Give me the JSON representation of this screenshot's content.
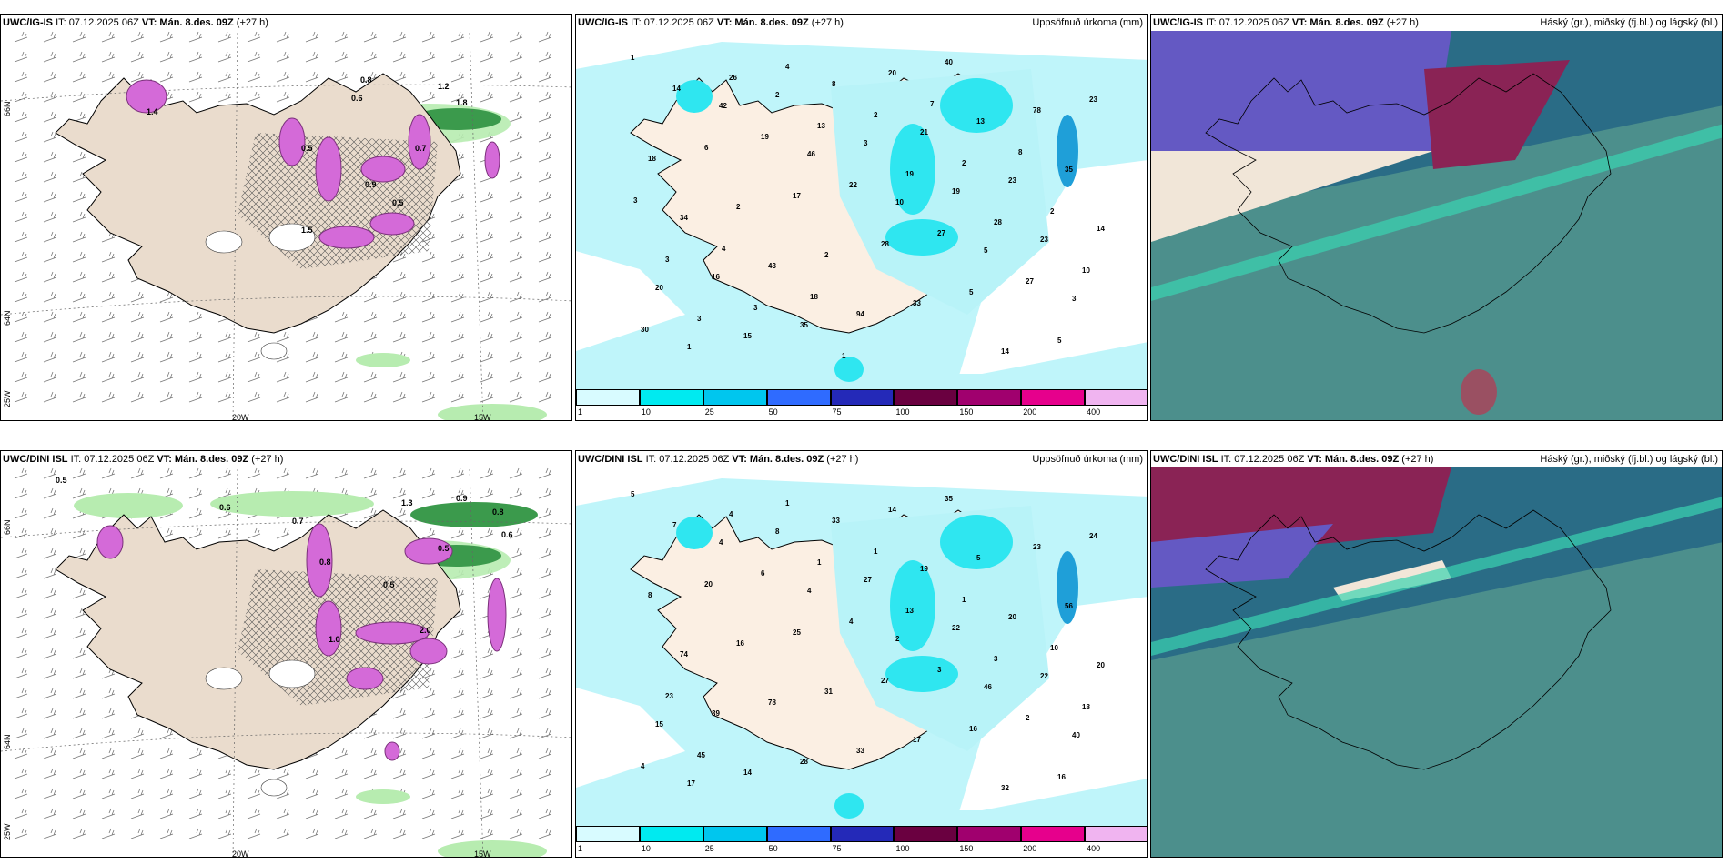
{
  "panels": {
    "top_left": {
      "model": "UWC/IG-IS",
      "it": "IT: 07.12.2025 06Z",
      "vt_label": "VT:",
      "vt": "Mán. 8.des. 09Z",
      "lead": "(+27 h)",
      "right": ""
    },
    "top_mid": {
      "model": "UWC/IG-IS",
      "it": "IT: 07.12.2025 06Z",
      "vt_label": "VT:",
      "vt": "Mán. 8.des. 09Z",
      "lead": "(+27 h)",
      "right": "Uppsöfnuð úrkoma (mm)"
    },
    "top_right": {
      "model": "UWC/IG-IS",
      "it": "IT: 07.12.2025 06Z",
      "vt_label": "VT:",
      "vt": "Mán. 8.des. 09Z",
      "lead": "(+27 h)",
      "right": "Háský (gr.), miðský (fj.bl.) og lágský (bl.)"
    },
    "bot_left": {
      "model": "UWC/DINI ISL",
      "it": "IT: 07.12.2025 06Z",
      "vt_label": "VT:",
      "vt": "Mán. 8.des. 09Z",
      "lead": "(+27 h)",
      "right": ""
    },
    "bot_mid": {
      "model": "UWC/DINI ISL",
      "it": "IT: 07.12.2025 06Z",
      "vt_label": "VT:",
      "vt": "Mán. 8.des. 09Z",
      "lead": "(+27 h)",
      "right": "Uppsöfnuð úrkoma (mm)"
    },
    "bot_right": {
      "model": "UWC/DINI ISL",
      "it": "IT: 07.12.2025 06Z",
      "vt_label": "VT:",
      "vt": "Mán. 8.des. 09Z",
      "lead": "(+27 h)",
      "right": "Háský (gr.), miðský (fj.bl.) og lágský (bl.)"
    }
  },
  "axis_labels": {
    "lat66": "66N",
    "lat64": "64N",
    "lon20": "20W",
    "lon15": "15W",
    "lon25": "25W"
  },
  "colorbar": {
    "ticks": [
      "1",
      "10",
      "25",
      "50",
      "75",
      "100",
      "150",
      "200",
      "400"
    ],
    "colors": [
      "#d8fbff",
      "#00eaf0",
      "#00c6ee",
      "#2f6bff",
      "#2429b8",
      "#6a0040",
      "#a0006e",
      "#e6008c",
      "#f0b4f0"
    ]
  },
  "precip_top": [
    "1",
    "42",
    "46",
    "10",
    "5",
    "3",
    "1",
    "2",
    "3",
    "19",
    "23",
    "20",
    "15",
    "8",
    "21",
    "23",
    "14",
    "16",
    "35",
    "20",
    "13",
    "35",
    "34",
    "43",
    "94",
    "40",
    "78",
    "18",
    "2",
    "2",
    "33",
    "14",
    "23",
    "6",
    "17",
    "28",
    "5",
    "5",
    "14",
    "19",
    "22",
    "27",
    "27",
    "30",
    "26",
    "13",
    "19",
    "28",
    "10",
    "3",
    "4",
    "2",
    "2",
    "2",
    "3",
    "3",
    "1",
    "7",
    "8",
    "3",
    "4",
    "18"
  ],
  "precip_bot": [
    "5",
    "4",
    "4",
    "2",
    "46",
    "40",
    "17",
    "8",
    "27",
    "22",
    "22",
    "15",
    "14",
    "33",
    "19",
    "20",
    "20",
    "39",
    "28",
    "14",
    "5",
    "56",
    "74",
    "78",
    "33",
    "35",
    "23",
    "8",
    "16",
    "31",
    "17",
    "32",
    "24",
    "20",
    "25",
    "27",
    "16",
    "16",
    "7",
    "6",
    "4",
    "3",
    "2",
    "4",
    "4",
    "1",
    "13",
    "3",
    "18",
    "45",
    "1",
    "1",
    "1",
    "10",
    "23"
  ],
  "contour_labels_top": [
    "0.8",
    "1.2",
    "1.8",
    "0.6",
    "0.7",
    "1.4",
    "0.5",
    "0.9",
    "1.5",
    "0.5"
  ],
  "contour_labels_bot": [
    "0.5",
    "0.6",
    "1.3",
    "0.9",
    "0.8",
    "0.6",
    "0.5",
    "0.7",
    "0.8",
    "0.5",
    "1.0",
    "2.0"
  ]
}
